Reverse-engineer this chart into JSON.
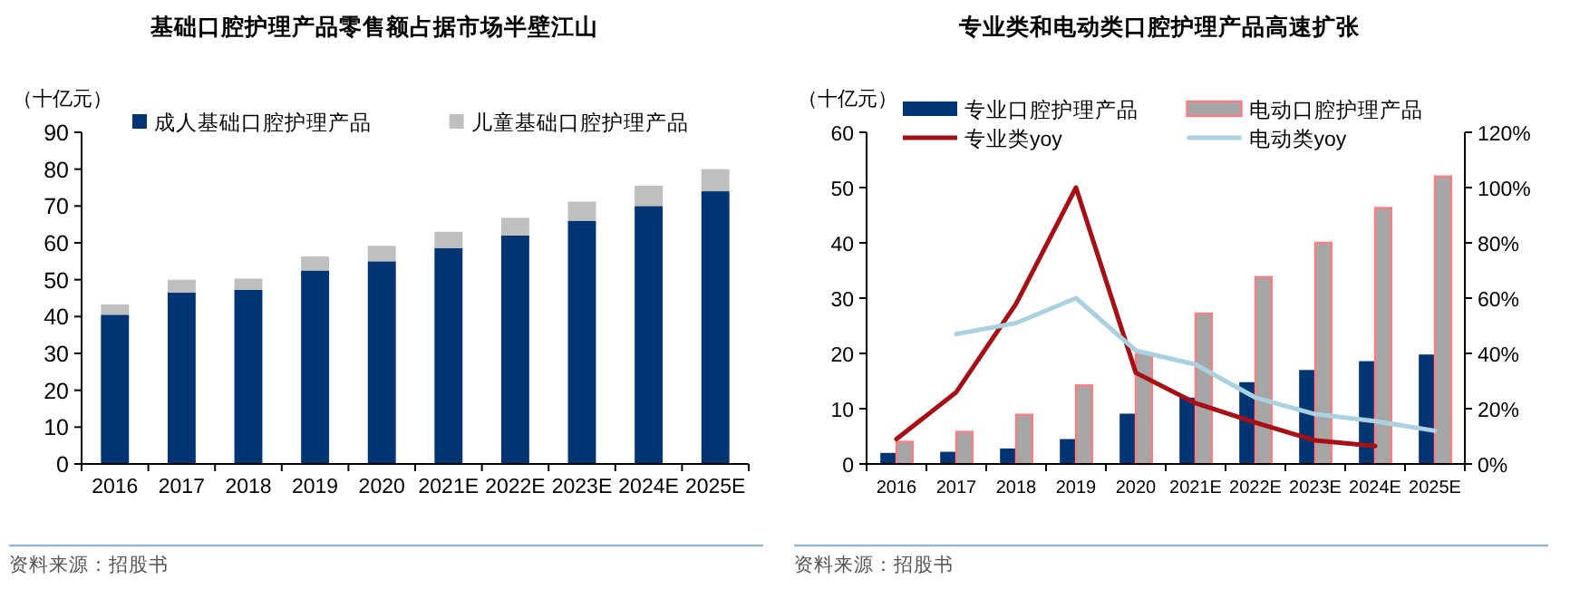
{
  "chart_data": [
    {
      "type": "bar",
      "title": "基础口腔护理产品零售额占据市场半壁江山",
      "ylabel": "（十亿元）",
      "stacked": true,
      "legend": "top",
      "categories": [
        "2016",
        "2017",
        "2018",
        "2019",
        "2020",
        "2021E",
        "2022E",
        "2023E",
        "2024E",
        "2025E"
      ],
      "series": [
        {
          "name": "成人基础口腔护理产品",
          "color": "#003473",
          "values": [
            40.5,
            46.5,
            47.3,
            52.5,
            55,
            58.6,
            62,
            66,
            70,
            74
          ]
        },
        {
          "name": "儿童基础口腔护理产品",
          "color": "#bfbfbf",
          "values": [
            2.8,
            3.5,
            3,
            3.8,
            4.2,
            4.4,
            4.8,
            5.2,
            5.5,
            6
          ]
        }
      ],
      "ylim": [
        0,
        90
      ],
      "yticks": [
        0,
        10,
        20,
        30,
        40,
        50,
        60,
        70,
        80,
        90
      ],
      "annotations": [
        "资料来源：招股书"
      ]
    },
    {
      "type": "bar",
      "title": "专业类和电动类口腔护理产品高速扩张",
      "ylabel": "（十亿元）",
      "legend": "top",
      "categories": [
        "2016",
        "2017",
        "2018",
        "2019",
        "2020",
        "2021E",
        "2022E",
        "2023E",
        "2024E",
        "2025E"
      ],
      "series": [
        {
          "name": "专业口腔护理产品",
          "color": "#003473",
          "values": [
            2,
            2.2,
            2.8,
            4.5,
            9.1,
            12,
            14.8,
            17,
            18.6,
            19.8
          ]
        },
        {
          "name": "电动口腔护理产品",
          "color": "#a6a6a6",
          "values": [
            4,
            5.8,
            8.9,
            14.2,
            20,
            27.2,
            33.8,
            40,
            46.3,
            52
          ]
        },
        {
          "name": "专业类yoy",
          "type": "line",
          "axis": "y2",
          "color": "#a50f15",
          "values": [
            9,
            26,
            58,
            100,
            33,
            22,
            15,
            8.5,
            6.5,
            null
          ]
        },
        {
          "name": "电动类yoy",
          "type": "line",
          "axis": "y2",
          "color": "#a9d1e0",
          "values": [
            null,
            47,
            51,
            60,
            41,
            36,
            24,
            18,
            15.5,
            12
          ]
        }
      ],
      "ylim": [
        0,
        60
      ],
      "yticks": [
        0,
        10,
        20,
        30,
        40,
        50,
        60
      ],
      "y2lim": [
        0,
        120
      ],
      "y2ticks": [
        {
          "value": 0,
          "label": "0%"
        },
        {
          "value": 20,
          "label": "20%"
        },
        {
          "value": 40,
          "label": "40%"
        },
        {
          "value": 60,
          "label": "60%"
        },
        {
          "value": 80,
          "label": "80%"
        },
        {
          "value": 100,
          "label": "100%"
        },
        {
          "value": 120,
          "label": "120%"
        }
      ],
      "annotations": [
        "资料来源：招股书"
      ]
    }
  ]
}
